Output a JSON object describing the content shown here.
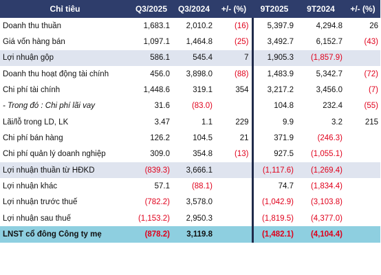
{
  "table": {
    "headers": [
      "Chỉ tiêu",
      "Q3/2025",
      "Q3/2024",
      "+/- (%)",
      "9T2025",
      "9T2024",
      "+/- (%)"
    ],
    "rows": [
      {
        "label": "Doanh thu thuần",
        "values": [
          "1,683.1",
          "2,010.2",
          "(16)",
          "5,397.9",
          "4,294.8",
          "26"
        ]
      },
      {
        "label": "Giá vốn hàng bán",
        "values": [
          "1,097.1",
          "1,464.8",
          "(25)",
          "3,492.7",
          "6,152.7",
          "(43)"
        ]
      },
      {
        "label": "Lợi nhuận gộp",
        "shade": true,
        "values": [
          "586.1",
          "545.4",
          "7",
          "1,905.3",
          "(1,857.9)",
          ""
        ]
      },
      {
        "label": "Doanh thu hoạt động tài chính",
        "values": [
          "456.0",
          "3,898.0",
          "(88)",
          "1,483.9",
          "5,342.7",
          "(72)"
        ]
      },
      {
        "label": "Chi phí tài chính",
        "values": [
          "1,448.6",
          "319.1",
          "354",
          "3,217.2",
          "3,456.0",
          "(7)"
        ]
      },
      {
        "label": "- Trong đó : Chi phí lãi vay",
        "italic": true,
        "values": [
          "31.6",
          "(83.0)",
          "",
          "104.8",
          "232.4",
          "(55)"
        ]
      },
      {
        "label": "Lãi/lỗ trong LD, LK",
        "values": [
          "3.47",
          "1.1",
          "229",
          "9.9",
          "3.2",
          "215"
        ]
      },
      {
        "label": "Chi phí bán hàng",
        "values": [
          "126.2",
          "104.5",
          "21",
          "371.9",
          "(246.3)",
          ""
        ]
      },
      {
        "label": "Chi phí quản lý doanh nghiệp",
        "values": [
          "309.0",
          "354.8",
          "(13)",
          "927.5",
          "(1,055.1)",
          ""
        ]
      },
      {
        "label": "Lợi nhuận thuần từ HĐKD",
        "shade": true,
        "values": [
          "(839.3)",
          "3,666.1",
          "",
          "(1,117.6)",
          "(1,269.4)",
          ""
        ]
      },
      {
        "label": "Lợi nhuận khác",
        "values": [
          "57.1",
          "(88.1)",
          "",
          "74.7",
          "(1,834.4)",
          ""
        ]
      },
      {
        "label": "Lợi nhuận trước thuế",
        "values": [
          "(782.2)",
          "3,578.0",
          "",
          "(1,042.9)",
          "(3,103.8)",
          ""
        ]
      },
      {
        "label": "Lợi nhuận sau thuế",
        "values": [
          "(1,153.2)",
          "2,950.3",
          "",
          "(1,819.5)",
          "(4,377.0)",
          ""
        ]
      },
      {
        "label": "LNST cổ đông Công ty mẹ",
        "total": true,
        "values": [
          "(878.2)",
          "3,119.8",
          "",
          "(1,482.1)",
          "(4,104.4)",
          ""
        ]
      }
    ]
  },
  "colors": {
    "header_bg": "#2e3d6b",
    "shaded_row_bg": "#dfe4ef",
    "total_row_bg": "#8ecfe0",
    "negative_text": "#e0001b"
  }
}
